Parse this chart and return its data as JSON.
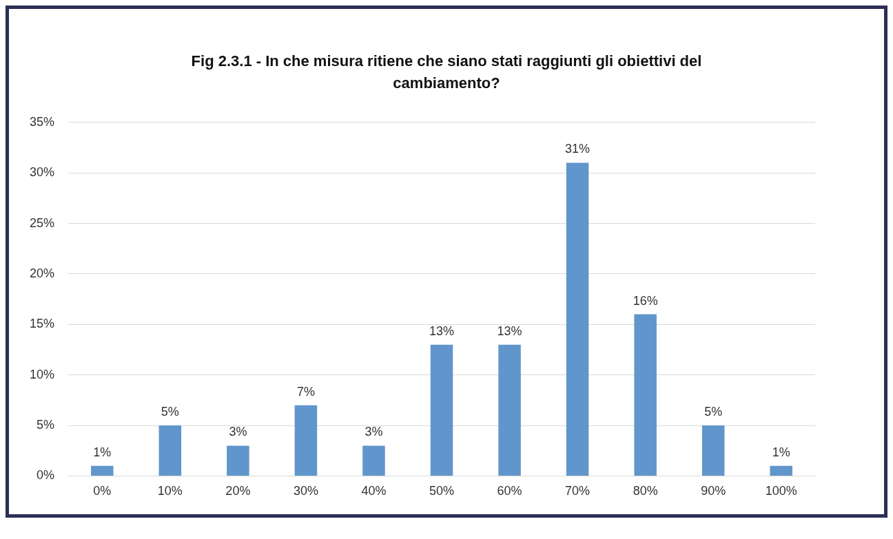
{
  "chart_data": {
    "type": "bar",
    "title": "Fig 2.3.1 - In che misura ritiene che siano stati raggiunti gli obiettivi del cambiamento?",
    "categories": [
      "0%",
      "10%",
      "20%",
      "30%",
      "40%",
      "50%",
      "60%",
      "70%",
      "80%",
      "90%",
      "100%"
    ],
    "values": [
      1,
      5,
      3,
      7,
      3,
      13,
      13,
      31,
      16,
      5,
      1
    ],
    "value_labels": [
      "1%",
      "5%",
      "3%",
      "7%",
      "3%",
      "13%",
      "13%",
      "31%",
      "16%",
      "5%",
      "1%"
    ],
    "color": "#6096cb",
    "ylim": [
      0,
      35
    ],
    "yticks": [
      {
        "value": 0,
        "label": "0%"
      },
      {
        "value": 5,
        "label": "5%"
      },
      {
        "value": 10,
        "label": "10%"
      },
      {
        "value": 15,
        "label": "15%"
      },
      {
        "value": 20,
        "label": "20%"
      },
      {
        "value": 25,
        "label": "25%"
      },
      {
        "value": 30,
        "label": "30%"
      },
      {
        "value": 35,
        "label": "35%"
      }
    ],
    "grid": "y",
    "legend": false
  }
}
